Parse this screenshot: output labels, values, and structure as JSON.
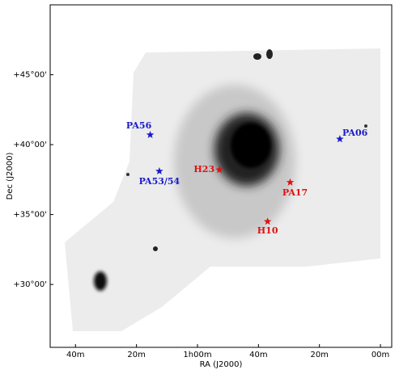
{
  "chart_data": {
    "type": "scatter",
    "x_label": "RA (J2000)",
    "y_label": "Dec (J2000)",
    "xlim": [
      108.3,
      -3.7
    ],
    "ylim": [
      25.5,
      50
    ],
    "xticks": [
      {
        "value": 100,
        "label": "40m"
      },
      {
        "value": 80,
        "label": "20m"
      },
      {
        "value": 60,
        "label": "1h00m"
      },
      {
        "value": 40,
        "label": "40m"
      },
      {
        "value": 20,
        "label": "20m"
      },
      {
        "value": 0,
        "label": "00m"
      }
    ],
    "yticks": [
      {
        "value": 30,
        "label": "+30°00'"
      },
      {
        "value": 35,
        "label": "+35°00'"
      },
      {
        "value": 40,
        "label": "+40°00'"
      },
      {
        "value": 45,
        "label": "+45°00'"
      }
    ],
    "points": [
      {
        "label": "PA56",
        "x": 75.5,
        "y": 40.7,
        "color": "#1a1acc"
      },
      {
        "label": "PA53/54",
        "x": 72.5,
        "y": 38.1,
        "color": "#1a1acc"
      },
      {
        "label": "H23",
        "x": 52.8,
        "y": 38.2,
        "color": "#e01010"
      },
      {
        "label": "PA17",
        "x": 29.6,
        "y": 37.3,
        "color": "#e01010"
      },
      {
        "label": "H10",
        "x": 37.0,
        "y": 34.5,
        "color": "#e01010"
      },
      {
        "label": "PA06",
        "x": 13.3,
        "y": 40.4,
        "color": "#1a1acc"
      }
    ]
  }
}
